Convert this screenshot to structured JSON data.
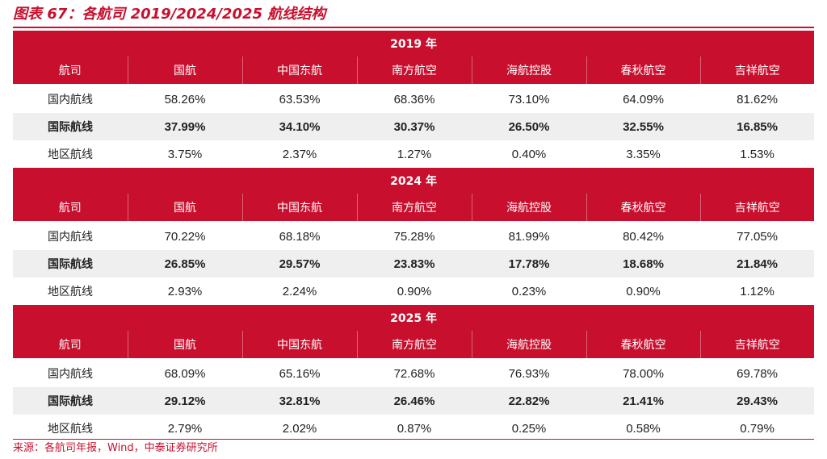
{
  "title": "图表 67：各航司 2019/2024/2025 航线结构",
  "source": "来源：各航司年报，Wind，中泰证券研究所",
  "colors": {
    "accent": "#c8102e",
    "shade": "#efefef"
  },
  "columns": [
    "航司",
    "国航",
    "中国东航",
    "南方航空",
    "海航控股",
    "春秋航空",
    "吉祥航空"
  ],
  "sections": [
    {
      "year": "2019 年",
      "rows": [
        {
          "label": "国内航线",
          "values": [
            "58.26%",
            "63.53%",
            "68.36%",
            "73.10%",
            "64.09%",
            "81.62%"
          ]
        },
        {
          "label": "国际航线",
          "values": [
            "37.99%",
            "34.10%",
            "30.37%",
            "26.50%",
            "32.55%",
            "16.85%"
          ]
        },
        {
          "label": "地区航线",
          "values": [
            "3.75%",
            "2.37%",
            "1.27%",
            "0.40%",
            "3.35%",
            "1.53%"
          ]
        }
      ]
    },
    {
      "year": "2024 年",
      "rows": [
        {
          "label": "国内航线",
          "values": [
            "70.22%",
            "68.18%",
            "75.28%",
            "81.99%",
            "80.42%",
            "77.05%"
          ]
        },
        {
          "label": "国际航线",
          "values": [
            "26.85%",
            "29.57%",
            "23.83%",
            "17.78%",
            "18.68%",
            "21.84%"
          ]
        },
        {
          "label": "地区航线",
          "values": [
            "2.93%",
            "2.24%",
            "0.90%",
            "0.23%",
            "0.90%",
            "1.12%"
          ]
        }
      ]
    },
    {
      "year": "2025 年",
      "rows": [
        {
          "label": "国内航线",
          "values": [
            "68.09%",
            "65.16%",
            "72.68%",
            "76.93%",
            "78.00%",
            "69.78%"
          ]
        },
        {
          "label": "国际航线",
          "values": [
            "29.12%",
            "32.81%",
            "26.46%",
            "22.82%",
            "21.41%",
            "29.43%"
          ]
        },
        {
          "label": "地区航线",
          "values": [
            "2.79%",
            "2.02%",
            "0.87%",
            "0.25%",
            "0.58%",
            "0.79%"
          ]
        }
      ]
    }
  ]
}
